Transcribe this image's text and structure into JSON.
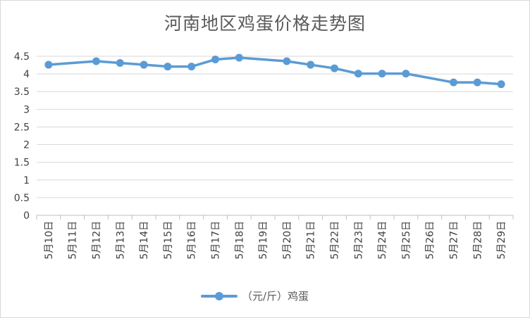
{
  "chart_data": {
    "type": "line",
    "title": "河南地区鸡蛋价格走势图",
    "categories": [
      "5月10日",
      "5月11日",
      "5月12日",
      "5月13日",
      "5月14日",
      "5月15日",
      "5月16日",
      "5月17日",
      "5月18日",
      "5月19日",
      "5月20日",
      "5月21日",
      "5月22日",
      "5月23日",
      "5月24日",
      "5月25日",
      "5月26日",
      "5月27日",
      "5月28日",
      "5月29日"
    ],
    "series": [
      {
        "name": "（元/斤）鸡蛋",
        "color": "#5b9bd5",
        "values": [
          4.26,
          null,
          4.36,
          4.31,
          4.26,
          4.21,
          4.21,
          4.41,
          4.46,
          null,
          4.36,
          4.26,
          4.16,
          4.01,
          4.01,
          4.01,
          null,
          3.76,
          3.76,
          3.71
        ]
      }
    ],
    "ylim": [
      0,
      4.5
    ],
    "yticks": [
      "0",
      "0.5",
      "1",
      "1.5",
      "2",
      "2.5",
      "3",
      "3.5",
      "4",
      "4.5"
    ],
    "xlabel": "",
    "ylabel": "",
    "grid": true,
    "legend": "bottom"
  }
}
